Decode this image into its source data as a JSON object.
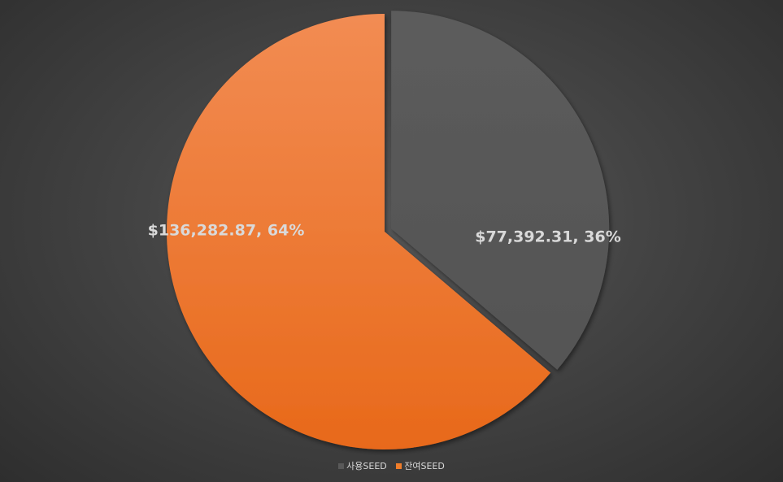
{
  "chart_data": {
    "type": "pie",
    "categories": [
      "사용SEED",
      "잔여SEED"
    ],
    "values": [
      77392.31,
      136282.87
    ],
    "percentages": [
      36,
      64
    ],
    "data_labels": [
      "$77,392.31, 36%",
      "$136,282.87, 64%"
    ],
    "colors": [
      "#595959",
      "#f07d2a"
    ],
    "exploded": [
      true,
      false
    ],
    "legend_position": "bottom",
    "title": ""
  }
}
